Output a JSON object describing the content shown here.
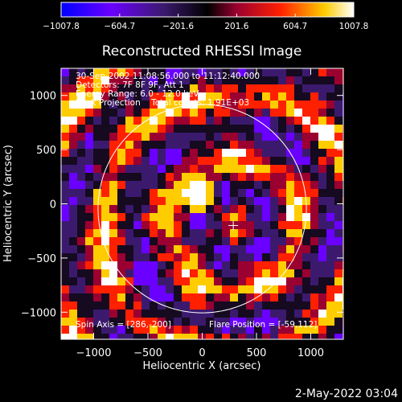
{
  "chart_data": {
    "type": "heatmap",
    "title": "Reconstructed RHESSI Image",
    "xlabel": "Heliocentric X (arcsec)",
    "ylabel": "Heliocentric Y (arcsec)",
    "xlim": [
      -1300,
      1300
    ],
    "ylim": [
      -1250,
      1250
    ],
    "x_ticks": [
      -1000,
      -500,
      0,
      500,
      1000
    ],
    "x_tick_labels": [
      "−1000",
      "−500",
      "0",
      "500",
      "1000"
    ],
    "y_ticks": [
      1000,
      500,
      0,
      -500,
      -1000
    ],
    "y_tick_labels": [
      "1000",
      "500",
      "0",
      "−500",
      "−1000"
    ],
    "colorbar": {
      "min": -1007.8,
      "max": 1007.8,
      "tick_values": [
        -1007.8,
        -604.7,
        -201.6,
        201.6,
        604.7,
        1007.8
      ],
      "tick_labels": [
        "−1007.8",
        "−604.7",
        "−201.6",
        "201.6",
        "604.7",
        "1007.8"
      ],
      "colors": [
        "#0000ff",
        "#6a00ff",
        "#3b1a6e",
        "#9a0030",
        "#ff2000",
        "#ffcc00",
        "#ffffff"
      ]
    },
    "annotations": [
      "30-Sep-2002 11:08:56.000 to 11:12:40.000",
      "Detectors: 7F 8F 9F, Att 1",
      "Energy Range: 6.0 - 12.0 keV",
      "Back Projection    Total counts: 1.91E+03"
    ],
    "spin_axis_label": "Spin Axis = [286,-200]",
    "flare_position_label": "Flare Position = [-59,112]",
    "spin_axis": [
      286,
      -200
    ],
    "flare_position": [
      -59,
      112
    ],
    "solar_disk_radius_arcsec": 960,
    "grid": false
  },
  "footer": {
    "timestamp": "2-May-2022 03:04"
  }
}
